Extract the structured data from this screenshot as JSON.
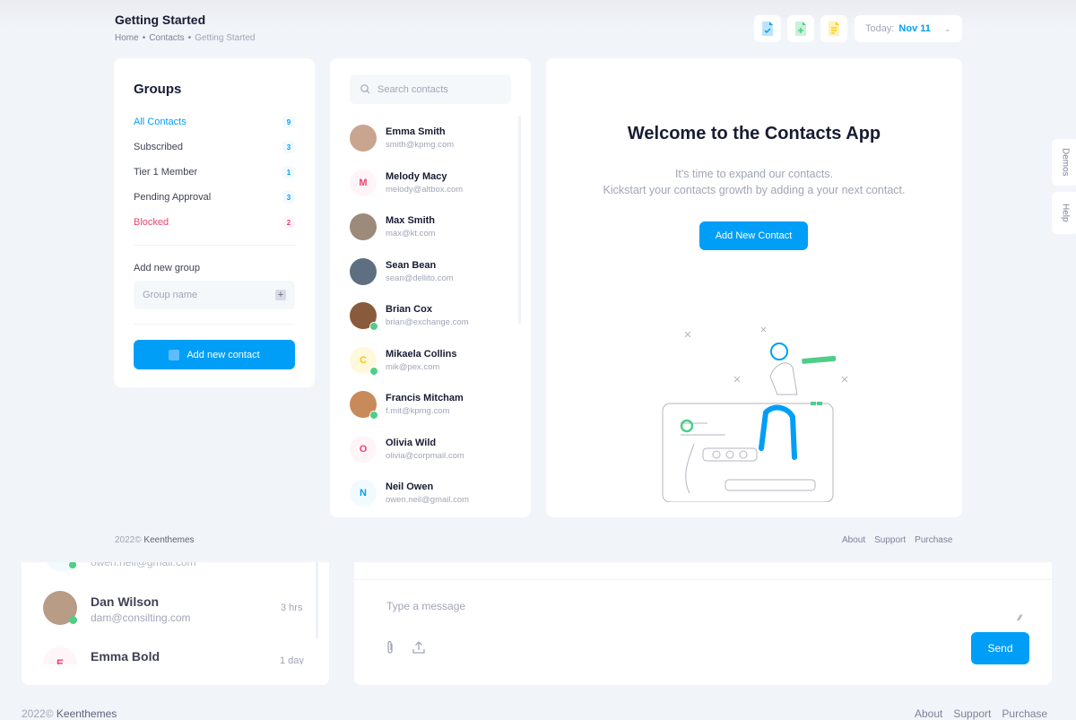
{
  "header": {
    "title": "Getting Started",
    "breadcrumb": [
      "Home",
      "Contacts",
      "Getting Started"
    ],
    "today_label": "Today:",
    "today_value": "Nov 11"
  },
  "toolbar": {
    "icons": [
      "file-check-icon",
      "file-add-icon",
      "file-text-icon"
    ]
  },
  "groups": {
    "title": "Groups",
    "items": [
      {
        "label": "All Contacts",
        "count": "9"
      },
      {
        "label": "Subscribed",
        "count": "3"
      },
      {
        "label": "Tier 1 Member",
        "count": "1"
      },
      {
        "label": "Pending Approval",
        "count": "3"
      },
      {
        "label": "Blocked",
        "count": "2"
      }
    ],
    "add_group_label": "Add new group",
    "group_placeholder": "Group name",
    "add_contact": "Add new contact"
  },
  "contacts": {
    "search_placeholder": "Search contacts",
    "items": [
      {
        "name": "Emma Smith",
        "email": "smith@kpmg.com",
        "initial": "",
        "online": false
      },
      {
        "name": "Melody Macy",
        "email": "melody@altbox.com",
        "initial": "M",
        "online": false
      },
      {
        "name": "Max Smith",
        "email": "max@kt.com",
        "initial": "",
        "online": false
      },
      {
        "name": "Sean Bean",
        "email": "sean@dellito.com",
        "initial": "",
        "online": false
      },
      {
        "name": "Brian Cox",
        "email": "brian@exchange.com",
        "initial": "",
        "online": true
      },
      {
        "name": "Mikaela Collins",
        "email": "mik@pex.com",
        "initial": "C",
        "online": true
      },
      {
        "name": "Francis Mitcham",
        "email": "f.mit@kpmg.com",
        "initial": "",
        "online": true
      },
      {
        "name": "Olivia Wild",
        "email": "olivia@corpmail.com",
        "initial": "O",
        "online": false
      },
      {
        "name": "Neil Owen",
        "email": "owen.neil@gmail.com",
        "initial": "N",
        "online": false
      }
    ]
  },
  "welcome": {
    "title": "Welcome to the Contacts App",
    "line1": "It's time to expand our contacts.",
    "line2": "Kickstart your contacts growth by adding a your next contact.",
    "button": "Add New Contact"
  },
  "footer": {
    "year": "2022©",
    "brand": "Keenthemes",
    "links": [
      "About",
      "Support",
      "Purchase"
    ]
  },
  "side_tabs": [
    "Demos",
    "Help"
  ],
  "back_chat": {
    "partial_email": "owen.neil@gmail.com",
    "items": [
      {
        "name": "Dan Wilson",
        "email": "dam@consilting.com",
        "time": "3 hrs",
        "initial": ""
      },
      {
        "name": "Emma Bold",
        "time": "1 day",
        "initial": "E"
      }
    ],
    "message_placeholder": "Type a message",
    "send": "Send"
  },
  "colors": {
    "primary": "#009ef7",
    "danger": "#f1416c",
    "success": "#50cd89",
    "warning": "#ffc700"
  }
}
